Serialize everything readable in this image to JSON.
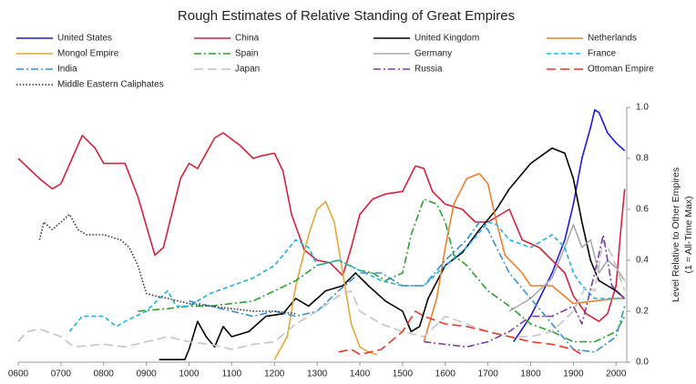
{
  "chart_data": {
    "type": "line",
    "title": "Rough Estimates of Relative Standing of Great Empires",
    "y_label": [
      "Level Relative to Other Empires",
      "(1 = All-Time Max)"
    ],
    "xlim": [
      600,
      2025
    ],
    "xticks": [
      {
        "value": 600,
        "label": "0600"
      },
      {
        "value": 700,
        "label": "0700"
      },
      {
        "value": 800,
        "label": "0800"
      },
      {
        "value": 900,
        "label": "0900"
      },
      1000,
      1100,
      1200,
      1300,
      1400,
      1500,
      1600,
      1700,
      1800,
      1900,
      2000
    ],
    "ylim": [
      0,
      1
    ],
    "yticks": [
      {
        "value": 0,
        "label": "0.0"
      },
      0.2,
      0.4,
      0.6,
      0.8,
      {
        "value": 1,
        "label": "1.0"
      }
    ],
    "y_axis_side": "right",
    "series": [
      {
        "name": "United States",
        "color": "#1a1adb",
        "style": "solid",
        "x": [
          1760,
          1800,
          1850,
          1880,
          1900,
          1920,
          1940,
          1950,
          1960,
          1980,
          2000,
          2020
        ],
        "values": [
          0.08,
          0.18,
          0.35,
          0.48,
          0.62,
          0.8,
          0.92,
          0.99,
          0.98,
          0.9,
          0.86,
          0.83
        ]
      },
      {
        "name": "China",
        "color": "#d6213a",
        "style": "solid",
        "x": [
          600,
          650,
          680,
          700,
          750,
          780,
          800,
          850,
          880,
          920,
          940,
          980,
          1000,
          1020,
          1060,
          1080,
          1120,
          1150,
          1170,
          1200,
          1220,
          1240,
          1270,
          1300,
          1330,
          1360,
          1380,
          1400,
          1430,
          1460,
          1500,
          1530,
          1550,
          1570,
          1600,
          1640,
          1670,
          1700,
          1750,
          1780,
          1820,
          1850,
          1880,
          1900,
          1930,
          1960,
          1980,
          2000,
          2010,
          2020
        ],
        "values": [
          0.8,
          0.72,
          0.68,
          0.7,
          0.89,
          0.84,
          0.78,
          0.78,
          0.65,
          0.42,
          0.45,
          0.72,
          0.78,
          0.76,
          0.88,
          0.9,
          0.85,
          0.8,
          0.81,
          0.82,
          0.75,
          0.58,
          0.44,
          0.4,
          0.39,
          0.34,
          0.45,
          0.58,
          0.64,
          0.66,
          0.67,
          0.77,
          0.76,
          0.67,
          0.62,
          0.6,
          0.55,
          0.55,
          0.6,
          0.48,
          0.45,
          0.4,
          0.35,
          0.26,
          0.19,
          0.16,
          0.19,
          0.3,
          0.5,
          0.68
        ]
      },
      {
        "name": "United Kingdom",
        "color": "#000000",
        "style": "solid",
        "x": [
          930,
          990,
          1000,
          1020,
          1040,
          1060,
          1080,
          1100,
          1140,
          1180,
          1220,
          1250,
          1280,
          1320,
          1360,
          1390,
          1420,
          1460,
          1500,
          1520,
          1540,
          1560,
          1600,
          1640,
          1680,
          1700,
          1720,
          1750,
          1800,
          1850,
          1880,
          1900,
          1920,
          1940,
          1960,
          1980,
          2000,
          2020
        ],
        "values": [
          0.01,
          0.01,
          0.05,
          0.16,
          0.1,
          0.06,
          0.14,
          0.1,
          0.12,
          0.18,
          0.19,
          0.25,
          0.22,
          0.28,
          0.3,
          0.35,
          0.3,
          0.24,
          0.2,
          0.12,
          0.14,
          0.25,
          0.38,
          0.43,
          0.52,
          0.56,
          0.6,
          0.68,
          0.78,
          0.84,
          0.82,
          0.72,
          0.55,
          0.4,
          0.32,
          0.3,
          0.28,
          0.25
        ]
      },
      {
        "name": "Netherlands",
        "color": "#f07f2c",
        "style": "solid",
        "x": [
          1550,
          1580,
          1600,
          1620,
          1650,
          1680,
          1700,
          1720,
          1740,
          1780,
          1800,
          1850,
          1900,
          1950,
          2000,
          2020
        ],
        "values": [
          0.08,
          0.25,
          0.45,
          0.62,
          0.72,
          0.74,
          0.7,
          0.55,
          0.42,
          0.35,
          0.3,
          0.3,
          0.23,
          0.24,
          0.25,
          0.25
        ]
      },
      {
        "name": "Mongol Empire",
        "color": "#e0a83a",
        "style": "solid",
        "x": [
          1200,
          1230,
          1250,
          1280,
          1300,
          1320,
          1340,
          1360,
          1380,
          1400,
          1420,
          1440
        ],
        "values": [
          0.01,
          0.1,
          0.3,
          0.5,
          0.6,
          0.63,
          0.55,
          0.35,
          0.15,
          0.06,
          0.04,
          0.03
        ]
      },
      {
        "name": "Spain",
        "color": "#2ca02c",
        "style": "dashdot",
        "x": [
          880,
          950,
          1000,
          1050,
          1100,
          1150,
          1200,
          1250,
          1300,
          1350,
          1400,
          1430,
          1460,
          1500,
          1520,
          1550,
          1580,
          1600,
          1620,
          1650,
          1700,
          1750,
          1800,
          1850,
          1900,
          1950,
          2000,
          2020
        ],
        "values": [
          0.2,
          0.21,
          0.22,
          0.22,
          0.23,
          0.24,
          0.28,
          0.32,
          0.38,
          0.4,
          0.36,
          0.35,
          0.32,
          0.35,
          0.5,
          0.64,
          0.62,
          0.55,
          0.42,
          0.38,
          0.28,
          0.22,
          0.15,
          0.12,
          0.08,
          0.08,
          0.12,
          0.18
        ]
      },
      {
        "name": "Germany",
        "color": "#aaaaaa",
        "style": "solid",
        "x": [
          1750,
          1800,
          1850,
          1880,
          1900,
          1920,
          1940,
          1960,
          1980,
          2000,
          2020
        ],
        "values": [
          0.2,
          0.25,
          0.33,
          0.45,
          0.54,
          0.45,
          0.48,
          0.35,
          0.4,
          0.37,
          0.32
        ]
      },
      {
        "name": "France",
        "color": "#1fb3e0",
        "style": "dashed",
        "x": [
          720,
          750,
          800,
          830,
          850,
          900,
          930,
          950,
          970,
          1000,
          1050,
          1100,
          1150,
          1200,
          1250,
          1280,
          1300,
          1350,
          1400,
          1450,
          1500,
          1550,
          1600,
          1650,
          1700,
          1720,
          1750,
          1800,
          1850,
          1880,
          1900,
          1920,
          1950,
          2000,
          2020
        ],
        "values": [
          0.12,
          0.18,
          0.18,
          0.14,
          0.16,
          0.2,
          0.25,
          0.28,
          0.22,
          0.22,
          0.27,
          0.3,
          0.33,
          0.38,
          0.48,
          0.45,
          0.38,
          0.4,
          0.36,
          0.32,
          0.3,
          0.3,
          0.38,
          0.45,
          0.55,
          0.54,
          0.48,
          0.45,
          0.5,
          0.45,
          0.35,
          0.3,
          0.25,
          0.25,
          0.25
        ]
      },
      {
        "name": "India",
        "color": "#3a8fd0",
        "style": "dashdot",
        "x": [
          1000,
          1050,
          1100,
          1150,
          1200,
          1250,
          1300,
          1350,
          1400,
          1450,
          1500,
          1550,
          1600,
          1650,
          1680,
          1700,
          1720,
          1750,
          1800,
          1850,
          1900,
          1950,
          2000,
          2020
        ],
        "values": [
          0.24,
          0.22,
          0.2,
          0.18,
          0.2,
          0.18,
          0.2,
          0.28,
          0.35,
          0.35,
          0.3,
          0.3,
          0.4,
          0.48,
          0.55,
          0.52,
          0.45,
          0.35,
          0.25,
          0.15,
          0.05,
          0.04,
          0.1,
          0.22
        ]
      },
      {
        "name": "Japan",
        "color": "#c4c4c4",
        "style": "longdash",
        "x": [
          600,
          620,
          650,
          700,
          730,
          800,
          850,
          900,
          950,
          1000,
          1050,
          1100,
          1150,
          1200,
          1250,
          1300,
          1350,
          1380,
          1400,
          1450,
          1500,
          1550,
          1600,
          1650,
          1700,
          1750,
          1800,
          1850,
          1900,
          1930,
          1950,
          1970,
          1990,
          2020
        ],
        "values": [
          0.08,
          0.12,
          0.13,
          0.1,
          0.06,
          0.07,
          0.06,
          0.08,
          0.1,
          0.08,
          0.07,
          0.05,
          0.07,
          0.08,
          0.15,
          0.2,
          0.26,
          0.28,
          0.2,
          0.15,
          0.12,
          0.1,
          0.18,
          0.15,
          0.12,
          0.1,
          0.1,
          0.12,
          0.2,
          0.3,
          0.28,
          0.48,
          0.42,
          0.28
        ]
      },
      {
        "name": "Russia",
        "color": "#7b3fa0",
        "style": "dashdot",
        "x": [
          1550,
          1600,
          1650,
          1700,
          1750,
          1800,
          1850,
          1900,
          1920,
          1950,
          1970,
          1990,
          2020
        ],
        "values": [
          0.08,
          0.07,
          0.06,
          0.08,
          0.12,
          0.18,
          0.18,
          0.22,
          0.15,
          0.35,
          0.5,
          0.3,
          0.25
        ]
      },
      {
        "name": "Ottoman Empire",
        "color": "#e8392a",
        "style": "longdash",
        "x": [
          1350,
          1380,
          1400,
          1450,
          1500,
          1530,
          1550,
          1600,
          1650,
          1700,
          1750,
          1800,
          1850,
          1900,
          1920
        ],
        "values": [
          0.04,
          0.05,
          0.03,
          0.05,
          0.12,
          0.2,
          0.18,
          0.15,
          0.14,
          0.12,
          0.1,
          0.08,
          0.07,
          0.05,
          0.03
        ]
      },
      {
        "name": "Middle Eastern Caliphates",
        "color": "#333333",
        "style": "dotted",
        "x": [
          650,
          660,
          680,
          700,
          720,
          740,
          760,
          800,
          840,
          860,
          880,
          900,
          920,
          950,
          1000,
          1050,
          1100,
          1150,
          1200,
          1250
        ],
        "values": [
          0.48,
          0.55,
          0.52,
          0.55,
          0.58,
          0.52,
          0.5,
          0.5,
          0.48,
          0.45,
          0.38,
          0.27,
          0.26,
          0.25,
          0.23,
          0.22,
          0.21,
          0.2,
          0.2,
          0.19
        ]
      }
    ]
  }
}
